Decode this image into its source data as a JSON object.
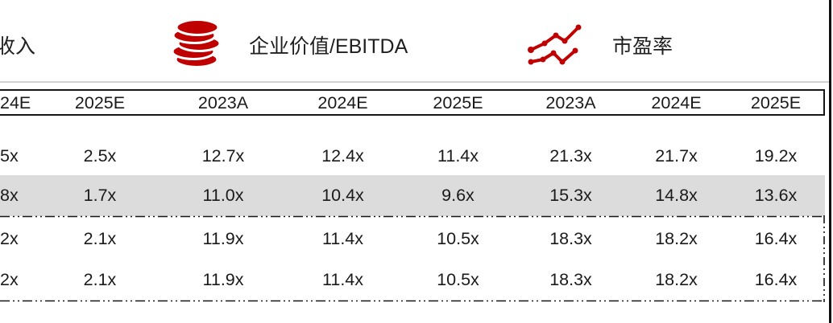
{
  "legend": {
    "items": [
      {
        "label": "收入",
        "icon": "revenue (icon cut off at left edge)"
      },
      {
        "label": "企业价值/EBITDA",
        "icon": "coins-stack"
      },
      {
        "label": "市盈率",
        "icon": "line-chart"
      }
    ]
  },
  "table": {
    "columns": [
      "24E",
      "2025E",
      "2023A",
      "2024E",
      "2025E",
      "2023A",
      "2024E",
      "2025E"
    ],
    "rows": [
      {
        "highlight": false,
        "cells": [
          "5x",
          "2.5x",
          "12.7x",
          "12.4x",
          "11.4x",
          "21.3x",
          "21.7x",
          "19.2x"
        ]
      },
      {
        "highlight": true,
        "cells": [
          "8x",
          "1.7x",
          "11.0x",
          "10.4x",
          "9.6x",
          "15.3x",
          "14.8x",
          "13.6x"
        ]
      },
      {
        "highlight": false,
        "cells": [
          "2x",
          "2.1x",
          "11.9x",
          "11.4x",
          "10.5x",
          "18.3x",
          "18.2x",
          "16.4x"
        ]
      },
      {
        "highlight": false,
        "cells": [
          "2x",
          "2.1x",
          "11.9x",
          "11.4x",
          "10.5x",
          "18.3x",
          "18.2x",
          "16.4x"
        ]
      }
    ]
  },
  "colors": {
    "accent_red": "#C00000",
    "row_highlight": "#DCDCDC",
    "rule_gray": "#D2D2D2",
    "text": "#1A1A1A"
  }
}
